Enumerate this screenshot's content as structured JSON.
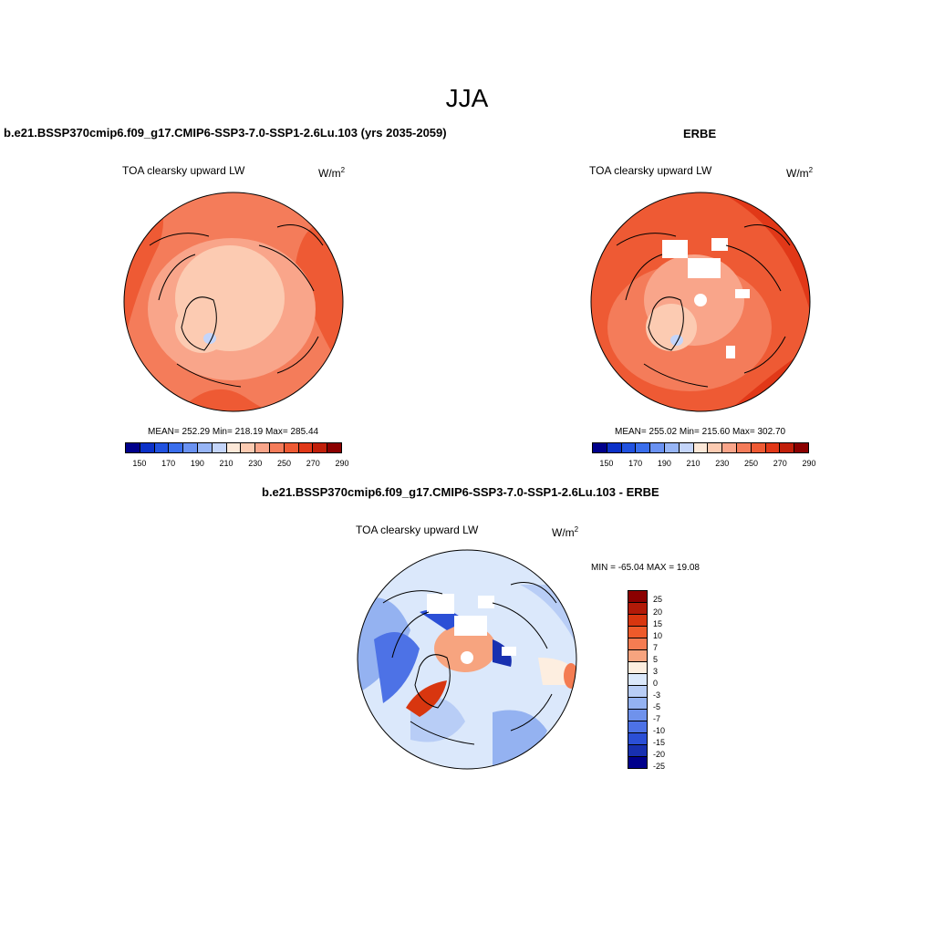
{
  "title": "JJA",
  "panel_left": {
    "title": "b.e21.BSSP370cmip6.f09_g17.CMIP6-SSP3-7.0-SSP1-2.6Lu.103 (yrs 2035-2059)",
    "variable": "TOA clearsky upward LW",
    "units": "W/m",
    "units_sup": "2",
    "stats": "MEAN= 252.29  Min= 218.19  Max= 285.44"
  },
  "panel_right": {
    "title": "ERBE",
    "variable": "TOA clearsky upward LW",
    "units": "W/m",
    "units_sup": "2",
    "stats": "MEAN= 255.02  Min= 215.60  Max= 302.70"
  },
  "panel_diff": {
    "title": "b.e21.BSSP370cmip6.f09_g17.CMIP6-SSP3-7.0-SSP1-2.6Lu.103 - ERBE",
    "variable": "TOA clearsky upward LW",
    "units": "W/m",
    "units_sup": "2",
    "minmax": "MIN = -65.04 MAX =  19.08"
  },
  "colorbar_abs": {
    "colors": [
      "#00008b",
      "#0b31c8",
      "#2152e0",
      "#3a6eec",
      "#6a92f2",
      "#97b5f6",
      "#c4d5fa",
      "#fce8d8",
      "#fccbb2",
      "#f9a58a",
      "#f47c5a",
      "#ee5a34",
      "#e13818",
      "#c11f0a",
      "#8b0000"
    ],
    "tick_labels": [
      "150",
      "170",
      "190",
      "210",
      "230",
      "250",
      "270",
      "290"
    ]
  },
  "colorbar_diff": {
    "colors": [
      "#8b0000",
      "#b21a08",
      "#d8360f",
      "#ee5a2a",
      "#f47c52",
      "#f7a47f",
      "#fdeee0",
      "#dbe8fb",
      "#b8cdf6",
      "#94b2f1",
      "#6f92ec",
      "#4d72e6",
      "#2b4fd6",
      "#1830b0",
      "#00008b"
    ],
    "tick_labels": [
      "25",
      "20",
      "15",
      "10",
      "7",
      "5",
      "3",
      "0",
      "-3",
      "-5",
      "-7",
      "-10",
      "-15",
      "-20",
      "-25"
    ]
  }
}
